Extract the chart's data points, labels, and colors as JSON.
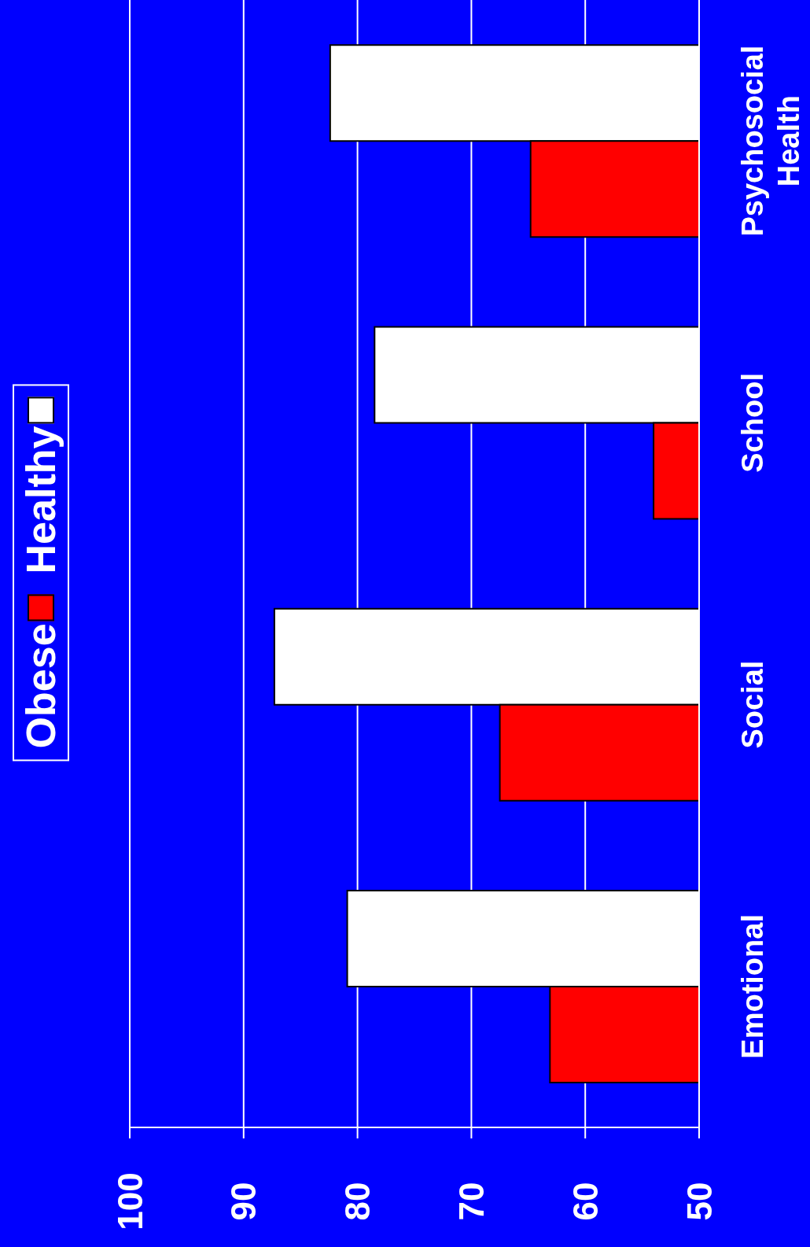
{
  "chart_data": {
    "type": "bar",
    "orientation": "horizontal",
    "categories": [
      "Psychosocial Health",
      "School",
      "Social",
      "Emotional"
    ],
    "series": [
      {
        "name": "Obese",
        "color": "#ff0000",
        "values": [
          64.8,
          54.0,
          67.5,
          63.1
        ]
      },
      {
        "name": "Healthy",
        "color": "#ffffff",
        "values": [
          82.4,
          78.5,
          87.3,
          80.9
        ]
      }
    ],
    "xlim": [
      100,
      50
    ],
    "xticks": [
      100,
      90,
      80,
      70,
      60,
      50
    ],
    "grid": "x",
    "legend": "left"
  }
}
